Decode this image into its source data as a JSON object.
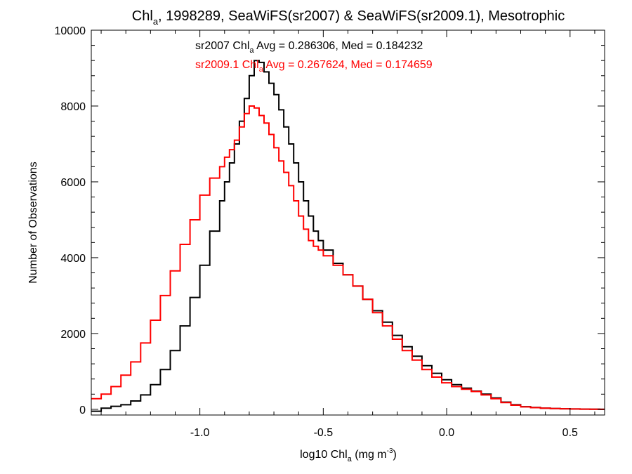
{
  "chart_data": {
    "type": "line",
    "title": {
      "prefix": "Chl",
      "sub": "a",
      "rest": ", 1998289, SeaWiFS(sr2007) & SeaWiFS(sr2009.1), Mesotrophic"
    },
    "xlabel": {
      "prefix": "log10 Chl",
      "sub": "a",
      "mid": " (mg m",
      "sup": "-3",
      "suffix": ")"
    },
    "ylabel": "Number of Observations",
    "xlim": [
      -1.44,
      0.64
    ],
    "ylim": [
      -150,
      10000
    ],
    "xticks": [
      {
        "v": -1.0,
        "label": "-1.0"
      },
      {
        "v": -0.5,
        "label": "-0.5"
      },
      {
        "v": 0.0,
        "label": "0.0"
      },
      {
        "v": 0.5,
        "label": "0.5"
      }
    ],
    "yticks": [
      {
        "v": 0,
        "label": "0"
      },
      {
        "v": 2000,
        "label": "2000"
      },
      {
        "v": 4000,
        "label": "4000"
      },
      {
        "v": 6000,
        "label": "6000"
      },
      {
        "v": 8000,
        "label": "8000"
      },
      {
        "v": 10000,
        "label": "10000"
      }
    ],
    "grid": false,
    "annotations": [
      {
        "series": "sr2007",
        "pre": "sr2007 Chl",
        "sub": "a",
        "post": " Avg = 0.286306, Med = 0.184232",
        "color": "#000000"
      },
      {
        "series": "sr2009.1",
        "pre": "sr2009.1 Chl",
        "sub": "a",
        "post": " Avg = 0.267624, Med = 0.174659",
        "color": "#ff0000"
      }
    ],
    "series": [
      {
        "color": "#000000",
        "x": [
          -1.44,
          -1.4,
          -1.36,
          -1.32,
          -1.28,
          -1.24,
          -1.2,
          -1.16,
          -1.12,
          -1.08,
          -1.04,
          -1.0,
          -0.96,
          -0.92,
          -0.9,
          -0.88,
          -0.86,
          -0.84,
          -0.82,
          -0.8,
          -0.78,
          -0.76,
          -0.74,
          -0.72,
          -0.7,
          -0.68,
          -0.66,
          -0.64,
          -0.62,
          -0.6,
          -0.58,
          -0.56,
          -0.54,
          -0.52,
          -0.5,
          -0.46,
          -0.42,
          -0.38,
          -0.34,
          -0.3,
          -0.26,
          -0.22,
          -0.18,
          -0.14,
          -0.1,
          -0.06,
          -0.02,
          0.02,
          0.06,
          0.1,
          0.14,
          0.18,
          0.22,
          0.26,
          0.3,
          0.34,
          0.38,
          0.42,
          0.46,
          0.5,
          0.54,
          0.58,
          0.62,
          0.64
        ],
        "y": [
          -50,
          30,
          80,
          120,
          220,
          380,
          650,
          1050,
          1550,
          2200,
          2950,
          3800,
          4700,
          5500,
          6000,
          6500,
          7000,
          7600,
          8200,
          8800,
          9200,
          9150,
          8900,
          8600,
          8300,
          7900,
          7450,
          7000,
          6500,
          6000,
          5500,
          5100,
          4700,
          4450,
          4200,
          3850,
          3550,
          3250,
          2900,
          2600,
          2300,
          1950,
          1650,
          1400,
          1150,
          950,
          780,
          650,
          560,
          480,
          400,
          300,
          190,
          120,
          70,
          50,
          30,
          20,
          15,
          10,
          5,
          2,
          0,
          0
        ]
      },
      {
        "color": "#ff0000",
        "x": [
          -1.44,
          -1.4,
          -1.36,
          -1.32,
          -1.28,
          -1.24,
          -1.2,
          -1.16,
          -1.12,
          -1.08,
          -1.04,
          -1.0,
          -0.96,
          -0.92,
          -0.9,
          -0.88,
          -0.86,
          -0.84,
          -0.82,
          -0.8,
          -0.78,
          -0.76,
          -0.74,
          -0.72,
          -0.7,
          -0.68,
          -0.66,
          -0.64,
          -0.62,
          -0.6,
          -0.58,
          -0.56,
          -0.54,
          -0.52,
          -0.5,
          -0.46,
          -0.42,
          -0.38,
          -0.34,
          -0.3,
          -0.26,
          -0.22,
          -0.18,
          -0.14,
          -0.1,
          -0.06,
          -0.02,
          0.02,
          0.06,
          0.1,
          0.14,
          0.18,
          0.22,
          0.26,
          0.3,
          0.34,
          0.38,
          0.42,
          0.46,
          0.5,
          0.54,
          0.58,
          0.62,
          0.64
        ],
        "y": [
          280,
          400,
          600,
          900,
          1250,
          1750,
          2350,
          3000,
          3650,
          4350,
          5000,
          5650,
          6100,
          6400,
          6650,
          6850,
          7100,
          7450,
          7800,
          8000,
          7950,
          7750,
          7550,
          7250,
          6900,
          6550,
          6250,
          5900,
          5500,
          5100,
          4750,
          4450,
          4300,
          4200,
          4050,
          3800,
          3550,
          3250,
          2900,
          2550,
          2200,
          1850,
          1550,
          1300,
          1050,
          850,
          700,
          600,
          530,
          470,
          380,
          280,
          180,
          110,
          65,
          45,
          30,
          20,
          15,
          10,
          5,
          2,
          0,
          0
        ]
      }
    ]
  }
}
